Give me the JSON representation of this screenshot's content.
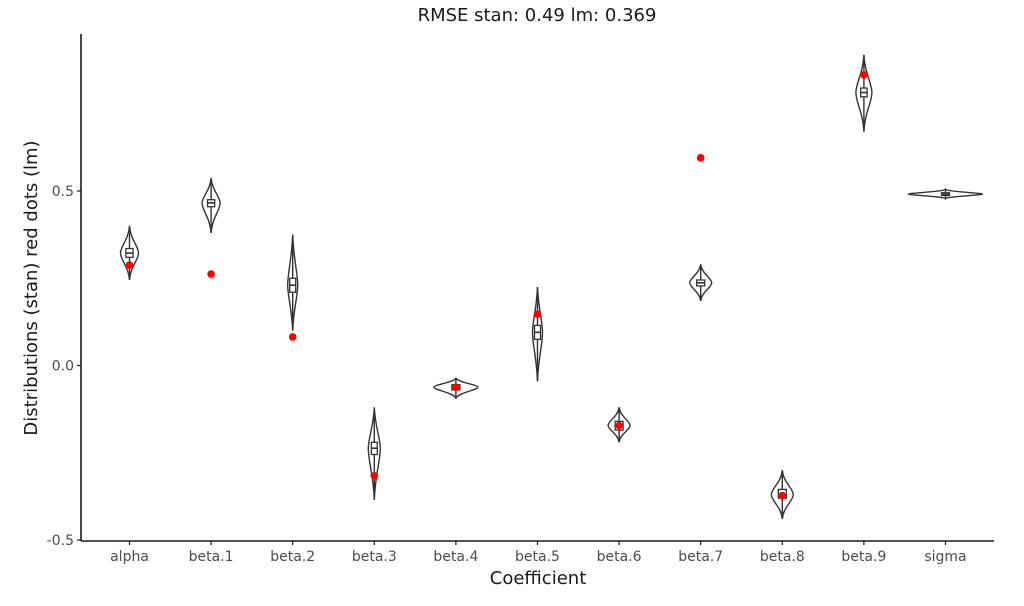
{
  "chart_data": {
    "type": "violin",
    "title": "RMSE stan: 0.49  lm: 0.369",
    "xlabel": "Coefficient",
    "ylabel": "Distributions (stan) red dots (lm)",
    "ylim": [
      -0.5,
      0.92
    ],
    "yticks": [
      -0.5,
      0.0,
      0.5
    ],
    "ytick_labels": [
      "-0.5",
      "0.0",
      "0.5"
    ],
    "grid": false,
    "legend": null,
    "categories": [
      "alpha",
      "beta.1",
      "beta.2",
      "beta.3",
      "beta.4",
      "beta.5",
      "beta.6",
      "beta.7",
      "beta.8",
      "beta.9",
      "sigma"
    ],
    "series": [
      {
        "name": "stan posterior (violin + box)",
        "distributions": [
          {
            "min": 0.245,
            "q1": 0.31,
            "median": 0.322,
            "q3": 0.335,
            "max": 0.4,
            "halfwidth": 9
          },
          {
            "min": 0.38,
            "q1": 0.455,
            "median": 0.466,
            "q3": 0.475,
            "max": 0.537,
            "halfwidth": 9
          },
          {
            "min": 0.1,
            "q1": 0.21,
            "median": 0.23,
            "q3": 0.25,
            "max": 0.375,
            "halfwidth": 5
          },
          {
            "min": -0.385,
            "q1": -0.255,
            "median": -0.237,
            "q3": -0.22,
            "max": -0.12,
            "halfwidth": 6
          },
          {
            "min": -0.095,
            "q1": -0.07,
            "median": -0.062,
            "q3": -0.055,
            "max": -0.035,
            "halfwidth": 22
          },
          {
            "min": -0.045,
            "q1": 0.075,
            "median": 0.095,
            "q3": 0.115,
            "max": 0.225,
            "halfwidth": 5
          },
          {
            "min": -0.22,
            "q1": -0.185,
            "median": -0.172,
            "q3": -0.16,
            "max": -0.12,
            "halfwidth": 11
          },
          {
            "min": 0.185,
            "q1": 0.228,
            "median": 0.237,
            "q3": 0.245,
            "max": 0.29,
            "halfwidth": 11
          },
          {
            "min": -0.44,
            "q1": -0.38,
            "median": -0.37,
            "q3": -0.355,
            "max": -0.3,
            "halfwidth": 11
          },
          {
            "min": 0.67,
            "q1": 0.77,
            "median": 0.782,
            "q3": 0.795,
            "max": 0.89,
            "halfwidth": 8
          },
          {
            "min": 0.478,
            "q1": 0.487,
            "median": 0.491,
            "q3": 0.495,
            "max": 0.505,
            "halfwidth": 37
          }
        ]
      },
      {
        "name": "lm estimates (red dots)",
        "color": "#ff0000",
        "values": [
          0.288,
          0.262,
          0.082,
          -0.316,
          -0.062,
          0.147,
          -0.172,
          0.595,
          -0.373,
          0.833,
          null
        ]
      }
    ]
  },
  "colors": {
    "violin_stroke": "#333333",
    "lm_dot": "#ff0000",
    "axis": "#1a1a1a",
    "tick_text": "#4d4d4d"
  }
}
